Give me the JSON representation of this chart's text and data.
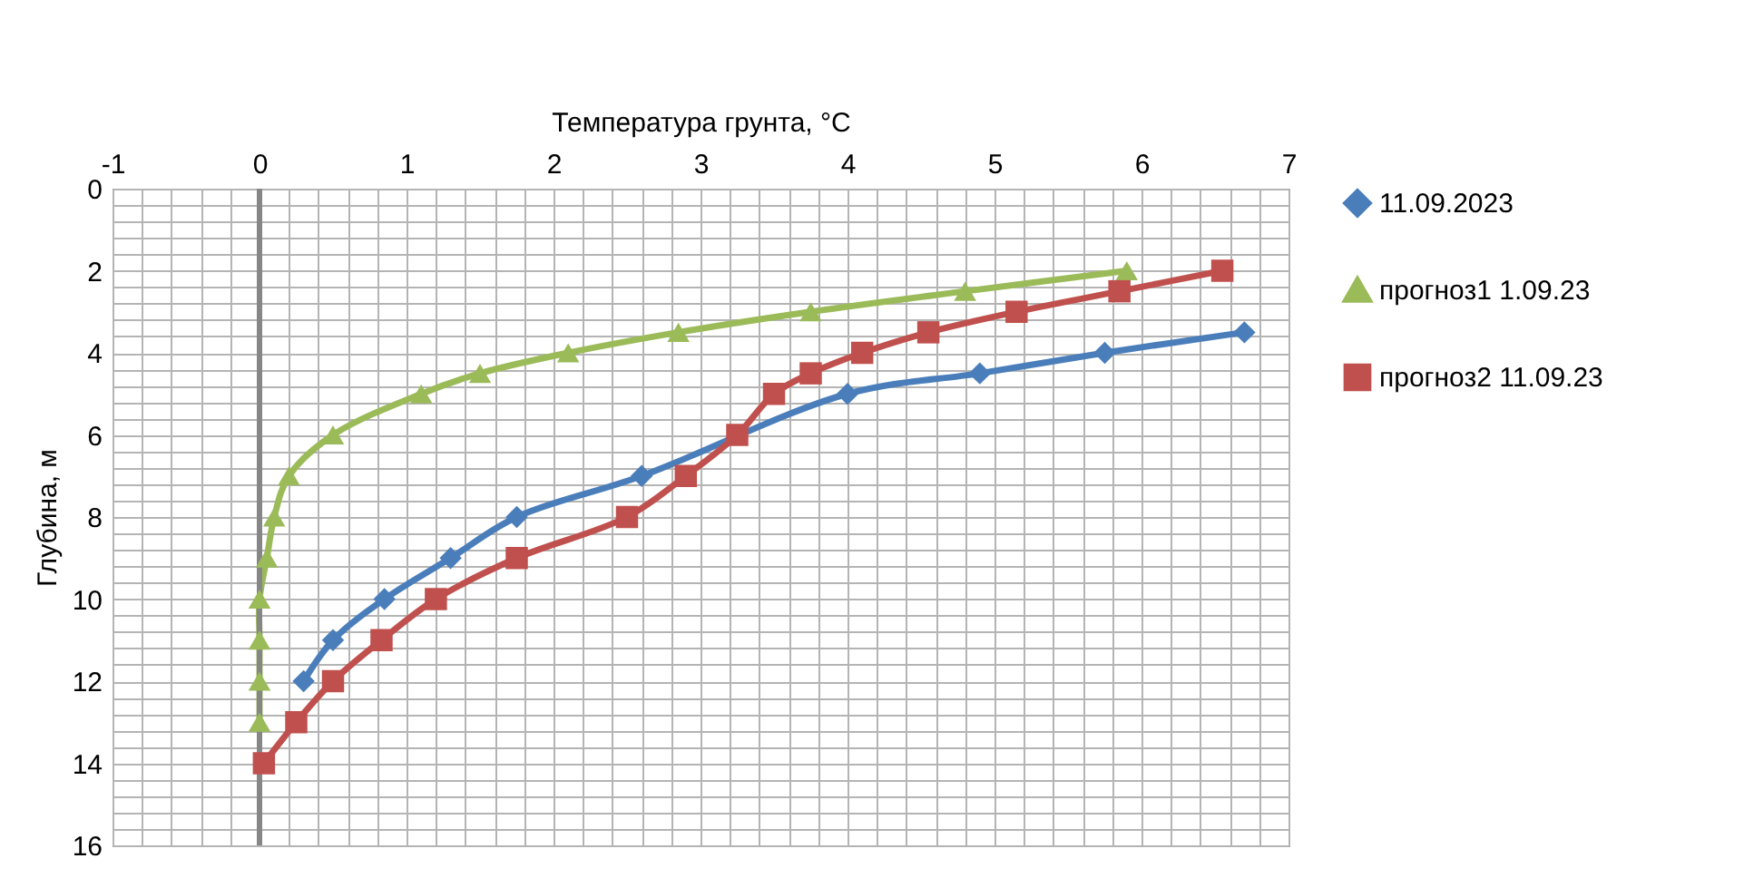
{
  "chart_data": {
    "type": "line",
    "xlabel": "Температура грунта, °C",
    "ylabel": "Глубина, м",
    "series": [
      {
        "name": "11.09.2023",
        "color": "#4a7ebb",
        "marker": "diamond",
        "x": [
          6.7,
          5.75,
          4.9,
          4,
          null,
          2.6,
          1.75,
          1.3,
          0.85,
          0.5,
          0.3
        ],
        "values": [
          3.5,
          4,
          4.5,
          5,
          null,
          7,
          8,
          9,
          10,
          11,
          12
        ]
      },
      {
        "name": "прогноз1 1.09.23",
        "color": "#9bbb59",
        "marker": "triangle",
        "x": [
          5.9,
          4.8,
          3.75,
          2.85,
          2.1,
          1.5,
          1.1,
          0.5,
          0.2,
          0.1,
          0.05,
          0,
          0,
          0,
          0,
          null
        ],
        "values": [
          2,
          2.5,
          3,
          3.5,
          4,
          4.5,
          5,
          6,
          7,
          8,
          9,
          10,
          11,
          12,
          13,
          null
        ]
      },
      {
        "name": "прогноз2 11.09.23",
        "color": "#c0504d",
        "marker": "square",
        "x": [
          6.55,
          5.85,
          5.15,
          4.55,
          4.1,
          3.75,
          3.5,
          3.25,
          2.9,
          2.5,
          1.75,
          1.2,
          0.83,
          0.5,
          0.25,
          0.03
        ],
        "values": [
          2,
          2.5,
          3,
          3.5,
          4,
          4.5,
          5,
          6,
          7,
          8,
          9,
          10,
          11,
          12,
          13,
          14
        ]
      }
    ],
    "xlim": [
      -1,
      7
    ],
    "xticks": [
      -1,
      {
        "value": -0.8,
        "label": null
      },
      {
        "value": -0.6,
        "label": null
      },
      {
        "value": -0.4,
        "label": null
      },
      {
        "value": -0.2,
        "label": null
      },
      0,
      {
        "value": 0.2,
        "label": null
      },
      {
        "value": 0.4,
        "label": null
      },
      {
        "value": 0.6,
        "label": null
      },
      {
        "value": 0.8,
        "label": null
      },
      1,
      {
        "value": 1.2,
        "label": null
      },
      {
        "value": 1.4,
        "label": null
      },
      {
        "value": 1.6,
        "label": null
      },
      {
        "value": 1.8,
        "label": null
      },
      2,
      {
        "value": 2.2,
        "label": null
      },
      {
        "value": 2.4,
        "label": null
      },
      {
        "value": 2.6,
        "label": null
      },
      {
        "value": 2.8,
        "label": null
      },
      3,
      {
        "value": 3.2,
        "label": null
      },
      {
        "value": 3.4,
        "label": null
      },
      {
        "value": 3.6,
        "label": null
      },
      {
        "value": 3.8,
        "label": null
      },
      4,
      {
        "value": 4.2,
        "label": null
      },
      {
        "value": 4.4,
        "label": null
      },
      {
        "value": 4.6,
        "label": null
      },
      {
        "value": 4.8,
        "label": null
      },
      5,
      {
        "value": 5.2,
        "label": null
      },
      {
        "value": 5.4,
        "label": null
      },
      {
        "value": 5.6,
        "label": null
      },
      {
        "value": 5.8,
        "label": null
      },
      6,
      {
        "value": 6.2,
        "label": null
      },
      {
        "value": 6.4,
        "label": null
      },
      {
        "value": 6.6,
        "label": null
      },
      {
        "value": 6.8,
        "label": null
      },
      7
    ],
    "ylim": [
      16,
      0
    ],
    "yticks": [
      0,
      {
        "value": 0.4,
        "label": null
      },
      {
        "value": 0.8,
        "label": null
      },
      {
        "value": 1.2,
        "label": null
      },
      {
        "value": 1.6,
        "label": null
      },
      2,
      {
        "value": 2.4,
        "label": null
      },
      {
        "value": 2.8,
        "label": null
      },
      {
        "value": 3.2,
        "label": null
      },
      {
        "value": 3.6,
        "label": null
      },
      4,
      {
        "value": 4.4,
        "label": null
      },
      {
        "value": 4.8,
        "label": null
      },
      {
        "value": 5.2,
        "label": null
      },
      {
        "value": 5.6,
        "label": null
      },
      6,
      {
        "value": 6.4,
        "label": null
      },
      {
        "value": 6.8,
        "label": null
      },
      {
        "value": 7.2,
        "label": null
      },
      {
        "value": 7.6,
        "label": null
      },
      8,
      {
        "value": 8.4,
        "label": null
      },
      {
        "value": 8.8,
        "label": null
      },
      {
        "value": 9.2,
        "label": null
      },
      {
        "value": 9.6,
        "label": null
      },
      10,
      {
        "value": 10.4,
        "label": null
      },
      {
        "value": 10.8,
        "label": null
      },
      {
        "value": 11.2,
        "label": null
      },
      {
        "value": 11.6,
        "label": null
      },
      12,
      {
        "value": 12.4,
        "label": null
      },
      {
        "value": 12.8,
        "label": null
      },
      {
        "value": 13.2,
        "label": null
      },
      {
        "value": 13.6,
        "label": null
      },
      14,
      {
        "value": 14.4,
        "label": null
      },
      {
        "value": 14.8,
        "label": null
      },
      {
        "value": 15.2,
        "label": null
      },
      {
        "value": 15.6,
        "label": null
      },
      16
    ],
    "ref_lines": [
      {
        "axis": "x",
        "value": 0,
        "color": "#868686"
      }
    ],
    "grid": true,
    "legend": "right",
    "line_style": "solid"
  }
}
